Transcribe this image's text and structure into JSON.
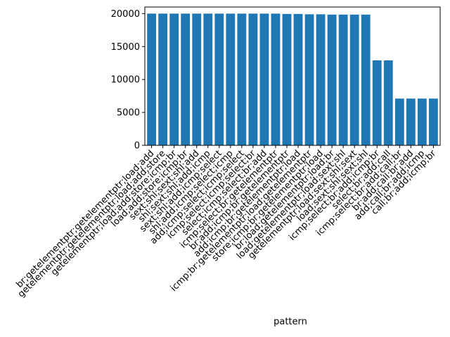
{
  "chart_data": {
    "type": "bar",
    "xlabel": "pattern",
    "ylabel": "",
    "ylim": [
      0,
      21000
    ],
    "yticks": [
      0,
      5000,
      10000,
      15000,
      20000
    ],
    "bar_color": "#1f77b4",
    "grid": false,
    "categories": [
      "br;getelementptr;getelementptr;load;add",
      "getelementptr;getelementptr;load;add;store",
      "getelementptr;load;add;store;icmp;br",
      "load;add;store;icmp;br",
      "sext;shl;sext;shl;add",
      "shl;sext;shl;add;icmp",
      "sext;shl;add;icmp;select",
      "shl;add;icmp;select;icmp",
      "add;icmp;select;icmp;select",
      "icmp;select;icmp;select;br",
      "select;icmp;select;br;add",
      "icmp;select;br;getelementptr",
      "br;add;icmp;br;getelementptr",
      "add;icmp;br;getelementptr;load",
      "icmp;br;getelementptr;load;getelementptr",
      "store;icmp;br;getelementptr;load",
      "br;load;getelementptr;load;br",
      "load;getelementptr;load;sext;shl",
      "getelementptr;load;sext;shl;sext",
      "load;sext;shl;sext;shl",
      "icmp;select;br;add;icmp;br",
      "select;br;add;call",
      "icmp;select;br;add;call;br",
      "br;add;call;br;add",
      "add;call;br;add;icmp",
      "call;br;add;icmp;br"
    ],
    "values": [
      20000,
      20000,
      20000,
      20000,
      20000,
      20000,
      20000,
      20000,
      20000,
      20000,
      20000,
      20000,
      19950,
      19950,
      19900,
      19900,
      19850,
      19850,
      19850,
      19850,
      12900,
      12900,
      7100,
      7100,
      7100,
      7100
    ]
  }
}
